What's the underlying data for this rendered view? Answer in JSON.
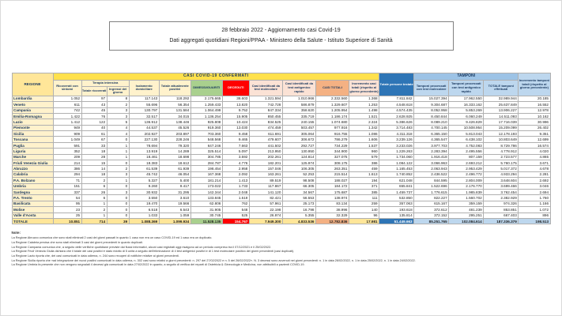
{
  "header": {
    "line1": "28 febbraio 2022 - Aggiornamento casi Covid-19",
    "line2": "Dati aggregati quotidiani Regioni/PPAA - Ministero della Salute - Istituto Superiore di Sanità"
  },
  "table": {
    "headers": {
      "band_casi": "CASI COVID-19 CONFERMATI",
      "band_tamponi": "TAMPONI",
      "regione": "REGIONE",
      "ricoverati_con_sintomi": "Ricoverati con sintomi",
      "terapia_intensiva": "Terapia intensiva",
      "totale_ricoverati": "Totale ricoverati",
      "ingressi_giorno": "Ingressi del giorno",
      "isolamento_domiciliare": "Isolamento domiciliare",
      "totale_attualmente_positivi": "Totale attualmente positivi",
      "dimessi_guariti": "DIMESSI/GUARITI",
      "deceduti": "DECEDUTI",
      "casi_molecolare": "Casi identificati da test molecolare",
      "casi_antigenico": "Casi identificati da test antigenico rapido",
      "casi_totali": "CASI TOTALI",
      "incremento_casi": "Incremento casi totali (rispetto al giorno precedente)",
      "persone_testate": "Totale persone testate",
      "tamponi_molecolare": "Tamponi processati con test molecolare",
      "tamponi_antigenico": "Tamponi processati con test antigenico rapido",
      "totale_tamponi": "TOTALE tamponi effettuati",
      "incremento_tamponi": "Incremento tamponi totali (rispetto al giorno precedente)"
    },
    "rows": [
      {
        "regione": "Lombardia",
        "values": [
          "1.052",
          "97",
          "8",
          "117.143",
          "118.292",
          "2.175.665",
          "38.603",
          "1.321.594",
          "1.010.966",
          "2.332.560",
          "1.368",
          "7.811.842",
          "15.027.394",
          "17.962.550",
          "32.989.944",
          "20.185"
        ]
      },
      {
        "regione": "Veneto",
        "values": [
          "611",
          "43",
          "2",
          "55.696",
          "56.354",
          "1.259.433",
          "13.820",
          "742.728",
          "586.879",
          "1.329.607",
          "1.253",
          "4.548.618",
          "9.304.687",
          "16.333.162",
          "25.637.849",
          "16.552"
        ]
      },
      {
        "regione": "Campania",
        "values": [
          "742",
          "45",
          "3",
          "130.797",
          "131.584",
          "1.064.499",
          "9.752",
          "847.334",
          "358.620",
          "1.205.954",
          "1.498",
          "4.574.435",
          "8.052.958",
          "5.853.269",
          "13.906.227",
          "12.978"
        ]
      },
      {
        "regione": "Emilia-Romagna",
        "values": [
          "1.422",
          "76",
          "3",
          "32.517",
          "34.015",
          "1.136.254",
          "15.905",
          "850.455",
          "335.719",
          "1.186.174",
          "1.521",
          "2.628.925",
          "8.450.844",
          "6.060.249",
          "14.511.093",
          "10.162"
        ]
      },
      {
        "regione": "Lazio",
        "values": [
          "1.412",
          "122",
          "5",
          "136.912",
          "138.446",
          "925.808",
          "10.424",
          "834.525",
          "240.155",
          "1.074.680",
          "2.324",
          "5.386.626",
          "8.089.210",
          "9.426.829",
          "17.716.039",
          "30.996"
        ]
      },
      {
        "regione": "Piemonte",
        "values": [
          "949",
          "40",
          "4",
          "44.537",
          "45.526",
          "919.360",
          "13.030",
          "474.459",
          "503.457",
          "977.916",
          "1.342",
          "3.714.483",
          "4.700.145",
          "10.508.954",
          "15.209.099",
          "26.402"
        ]
      },
      {
        "regione": "Sicilia",
        "values": [
          "909",
          "61",
          "4",
          "202.927",
          "203.897",
          "703.360",
          "9.458",
          "611.691",
          "305.064",
          "916.755",
          "1.086",
          "4.311.318",
          "6.365.150",
          "5.813.043",
          "12.178.193",
          "9.351"
        ]
      },
      {
        "regione": "Toscana",
        "values": [
          "1.049",
          "67",
          "0",
          "227.130",
          "228.246",
          "548.568",
          "9.465",
          "479.607",
          "306.672",
          "786.279",
          "1.606",
          "3.239.126",
          "4.365.547",
          "6.438.102",
          "10.803.649",
          "12.699"
        ]
      },
      {
        "regione": "Puglia",
        "values": [
          "591",
          "33",
          "1",
          "78.694",
          "79.320",
          "647.246",
          "7.663",
          "441.502",
          "292.727",
          "734.229",
          "1.537",
          "3.233.026",
          "3.977.703",
          "4.752.083",
          "8.729.786",
          "16.574"
        ]
      },
      {
        "regione": "Liguria",
        "values": [
          "352",
          "18",
          "1",
          "13.919",
          "14.289",
          "325.514",
          "5.097",
          "213.950",
          "130.950",
          "344.900",
          "960",
          "1.229.263",
          "2.283.394",
          "2.495.556",
          "4.778.912",
          "4.020"
        ]
      },
      {
        "regione": "Marche",
        "values": [
          "209",
          "28",
          "1",
          "18.461",
          "18.698",
          "304.785",
          "3.592",
          "202.261",
          "124.814",
          "327.075",
          "579",
          "1.734.060",
          "1.916.418",
          "807.159",
          "2.723.577",
          "4.865"
        ]
      },
      {
        "regione": "Friuli Venezia Giulia",
        "values": [
          "214",
          "15",
          "0",
          "18.383",
          "18.612",
          "284.787",
          "4.776",
          "182.201",
          "125.974",
          "308.175",
          "386",
          "1.084.122",
          "3.066.963",
          "2.693.212",
          "5.760.175",
          "3.671"
        ]
      },
      {
        "regione": "Abruzzo",
        "values": [
          "386",
          "14",
          "2",
          "61.539",
          "61.939",
          "198.454",
          "2.958",
          "157.046",
          "106.305",
          "263.351",
          "459",
          "1.165.453",
          "2.063.943",
          "2.953.429",
          "5.017.372",
          "4.678"
        ]
      },
      {
        "regione": "Calabria",
        "values": [
          "294",
          "18",
          "3",
          "45.742",
          "46.054",
          "167.368",
          "2.092",
          "163.261",
          "52.253",
          "215.514",
          "1.613",
          "1.740.852",
          "2.436.522",
          "2.496.772",
          "4.933.294",
          "2.281"
        ]
      },
      {
        "regione": "P.A. Bolzano",
        "values": [
          "71",
          "2",
          "1",
          "5.327",
          "5.400",
          "181.214",
          "1.413",
          "89.519",
          "98.508",
          "188.027",
          "194",
          "621.048",
          "844.595",
          "2.804.009",
          "3.648.604",
          "2.692"
        ]
      },
      {
        "regione": "Umbria",
        "values": [
          "151",
          "6",
          "0",
          "9.260",
          "9.417",
          "173.022",
          "1.733",
          "117.867",
          "66.305",
          "184.172",
          "371",
          "655.841",
          "1.522.696",
          "2.176.770",
          "3.699.466",
          "3.046"
        ]
      },
      {
        "regione": "Sardegna",
        "values": [
          "337",
          "26",
          "3",
          "30.932",
          "31.295",
          "142.344",
          "2.048",
          "141.120",
          "34.567",
          "175.687",
          "385",
          "1.459.737",
          "1.776.615",
          "1.985.839",
          "3.762.454",
          "2.694"
        ]
      },
      {
        "regione": "P.A. Trento",
        "values": [
          "54",
          "6",
          "0",
          "3.550",
          "3.610",
          "133.845",
          "1.519",
          "82.421",
          "56.553",
          "138.974",
          "111",
          "532.850",
          "822.227",
          "1.560.702",
          "2.382.929",
          "1.760"
        ]
      },
      {
        "regione": "Basilicata",
        "values": [
          "95",
          "1",
          "0",
          "19.470",
          "19.566",
          "62.806",
          "762",
          "57.961",
          "25.173",
          "83.134",
          "259",
          "357.063",
          "615.167",
          "359.159",
          "974.326",
          "1.166"
        ]
      },
      {
        "regione": "Molise",
        "values": [
          "23",
          "2",
          "0",
          "6.518",
          "6.543",
          "31.905",
          "548",
          "22.198",
          "16.798",
          "38.996",
          "140",
          "193.618",
          "372.612",
          "481.239",
          "853.851",
          "1.072"
        ]
      },
      {
        "regione": "Valle d'Aosta",
        "values": [
          "25",
          "1",
          "0",
          "1.033",
          "1.059",
          "30.745",
          "525",
          "26.974",
          "5.355",
          "32.329",
          "96",
          "135.814",
          "372.152",
          "295.251",
          "667.403",
          "896"
        ]
      }
    ],
    "totale": {
      "regione": "TOTALE",
      "values": [
        "10.851",
        "714",
        "39",
        "1.088.369",
        "1.099.934",
        "11.528.135",
        "154.767",
        "7.949.300",
        "4.833.536",
        "12.782.836",
        "17.981",
        "51.449.663",
        "85.251.765",
        "102.084.614",
        "187.336.379",
        "198.513"
      ]
    }
  },
  "notes": {
    "title": "Note:",
    "lines": [
      "La Regione Abruzzo comunica che sono stati eliminati 2 casi dei giorni passati in quanto 1 caso non era un caso COVID-19 ed 1 caso era un duplicato.",
      "La Regione Calabria precisa che sono stati eliminati 3 casi dei giorni precedenti in quanto duplicati.",
      "La Regione Campania comunica che, a seguito delle verifiche quotidiane previste dai flussi informativi, alcuni casi registrati oggi risalgono ad un periodo compreso tra il 07/12/2021 e il 25/02/2022.",
      "La Regione Friuli Venezia Giulia dichiara che il totale dei casi positivi è stato ridotto di 5 unità a seguito dell'eliminazione di 4 test antigenici positivi e di 1 test molecolare positivo dei giorni precedenti (casi duplicati).",
      "La Regione Lazio riporta che, dei casi comunicati in data odierna, n. 244 sono recuperi di notifiche relative ai giorni precedenti.",
      "La Regione Sicilia riporta che «ad integrazione dei nuovi positivi comunicati in data odierna, n. 302 casi sono relativi a giorni precedenti: n. 297 del 27/02/2022 e n. 5 del 26/02/2022». N. 3 decessi sono avvenuti nei giorni precedenti: n. 1 in data 26/02/2022, n. 1 in data 25/02/2022, n. 1 in data 24/02/2022.",
      "La Regione Umbria fa presente che non vengono segnalati 4 decessi già comunicati in data 27/02/2022 in quanto, a seguito di verifica dei reparti di Ostetricia & Ginecologia e Medicina, non attribuibili a pazienti COVID-19."
    ]
  }
}
